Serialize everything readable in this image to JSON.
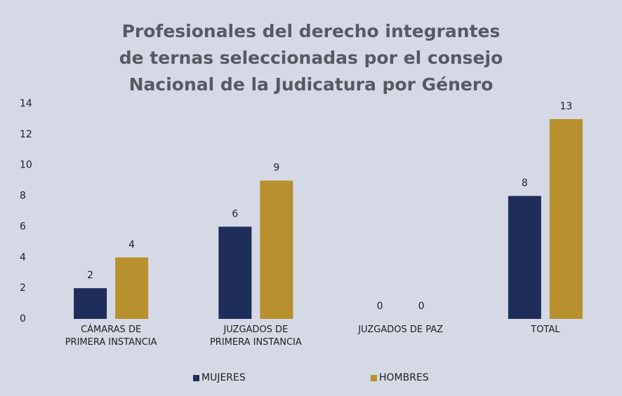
{
  "chart_data": {
    "type": "bar",
    "title": "Profesionales del derecho integrantes de ternas seleccionadas por el consejo Nacional de la Judicatura por Género",
    "categories": [
      "CÁMARAS DE PRIMERA INSTANCIA",
      "JUZGADOS DE PRIMERA INSTANCIA",
      "JUZGADOS DE PAZ",
      "TOTAL"
    ],
    "series": [
      {
        "name": "MUJERES",
        "color": "#1f2d5a",
        "values": [
          2,
          6,
          0,
          8
        ]
      },
      {
        "name": "HOMBRES",
        "color": "#b8912e",
        "values": [
          4,
          9,
          0,
          13
        ]
      }
    ],
    "ylim": [
      0,
      14
    ],
    "yticks": [
      0,
      2,
      4,
      6,
      8,
      10,
      12,
      14
    ],
    "grid": false,
    "legend": "bottom"
  }
}
